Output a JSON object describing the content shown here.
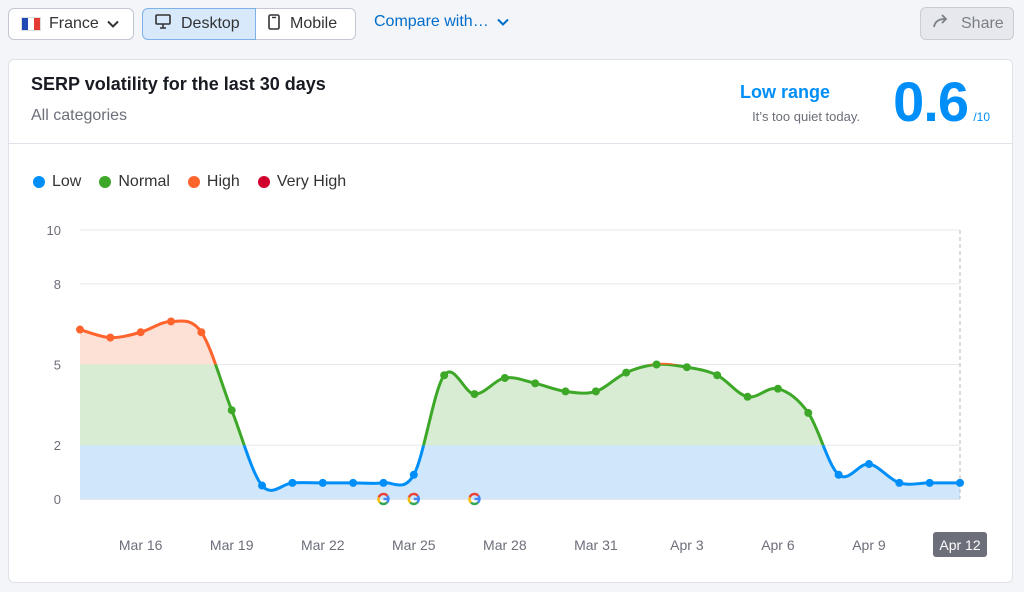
{
  "toolbar": {
    "country": "France",
    "flag_colors": [
      "#1f4bb4",
      "#ffffff",
      "#e53935"
    ],
    "devices": [
      "Desktop",
      "Mobile"
    ],
    "active_device": "Desktop",
    "compare_label": "Compare with…",
    "share_label": "Share"
  },
  "card": {
    "title": "SERP volatility for the last 30 days",
    "subtitle": "All categories",
    "range_label": "Low range",
    "range_desc": "It’s too quiet today.",
    "score": "0.6",
    "score_den": "/10"
  },
  "legend": [
    {
      "label": "Low",
      "color": "#008ff8"
    },
    {
      "label": "Normal",
      "color": "#3da828"
    },
    {
      "label": "High",
      "color": "#ff642d"
    },
    {
      "label": "Very High",
      "color": "#d1002f"
    }
  ],
  "chart_data": {
    "type": "line",
    "x": [
      "Mar 14",
      "Mar 15",
      "Mar 16",
      "Mar 17",
      "Mar 18",
      "Mar 19",
      "Mar 20",
      "Mar 21",
      "Mar 22",
      "Mar 23",
      "Mar 24",
      "Mar 25",
      "Mar 26",
      "Mar 27",
      "Mar 28",
      "Mar 29",
      "Mar 30",
      "Mar 31",
      "Apr 1",
      "Apr 2",
      "Apr 3",
      "Apr 4",
      "Apr 5",
      "Apr 6",
      "Apr 7",
      "Apr 8",
      "Apr 9",
      "Apr 10",
      "Apr 11",
      "Apr 12"
    ],
    "values": [
      6.3,
      6.0,
      6.2,
      6.6,
      6.2,
      3.3,
      0.5,
      0.6,
      0.6,
      0.6,
      0.6,
      0.9,
      4.6,
      3.9,
      4.5,
      4.3,
      4.0,
      4.0,
      4.7,
      5.0,
      4.9,
      4.6,
      3.8,
      4.1,
      3.2,
      0.9,
      1.3,
      0.6,
      0.6,
      0.6
    ],
    "ylim": [
      0,
      10
    ],
    "ytick_labels": [
      "0",
      "2",
      "5",
      "8",
      "10"
    ],
    "xtick_labels": [
      "Mar 16",
      "Mar 19",
      "Mar 22",
      "Mar 25",
      "Mar 28",
      "Mar 31",
      "Apr 3",
      "Apr 6",
      "Apr 9",
      "Apr 12"
    ],
    "highlighted_x": "Apr 12",
    "google_update_markers": [
      "Mar 24",
      "Mar 25",
      "Mar 27"
    ],
    "zones": [
      {
        "name": "Low",
        "max": 2,
        "line_color": "#008ff8",
        "fill": "#cfe6fb"
      },
      {
        "name": "Normal",
        "max": 5,
        "line_color": "#3da828",
        "fill": "#d8ecd3"
      },
      {
        "name": "High",
        "max": 8,
        "line_color": "#ff642d",
        "fill": "#fde0d6"
      },
      {
        "name": "Very High",
        "max": 10,
        "line_color": "#d1002f",
        "fill": "#f8d2da"
      }
    ],
    "grid": true,
    "legend_position": "top-left"
  }
}
